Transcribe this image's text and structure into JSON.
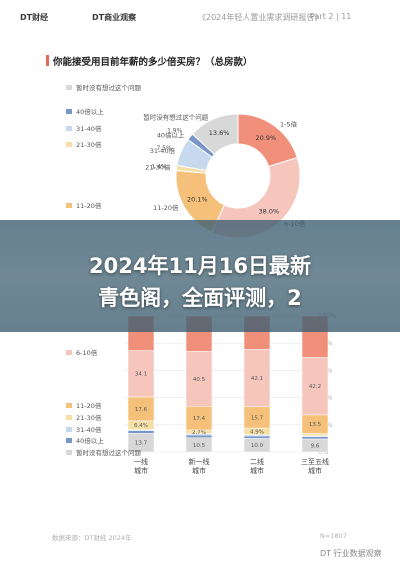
{
  "header": {
    "logo_left": "DT财经",
    "logo_right": "DT商业观察",
    "doc_title": "《2024年轻人置业需求调研报告》",
    "page": "Part 2 | 11"
  },
  "article_banner": "2024年11月16日最新\n青色阁，全面评测，2",
  "chart_data": [
    {
      "type": "pie",
      "title": "你能接受用目前年薪的多少倍买房？（总房款）",
      "slices": [
        {
          "label": "1-5倍",
          "value": 20.9,
          "color": "#f0907a"
        },
        {
          "label": "6-10倍",
          "value": 38.0,
          "color": "#f6c6bd"
        },
        {
          "label": "11-20倍",
          "value": 20.1,
          "color": "#f5c079"
        },
        {
          "label": "21-30倍",
          "value": 1.4,
          "color": "#f6dfa5"
        },
        {
          "label": "31-40倍",
          "value": 7.5,
          "color": "#c6d9ee"
        },
        {
          "label": "40倍以上",
          "value": 1.9,
          "color": "#7896c8"
        },
        {
          "label": "暂时没有想过这个问题",
          "value": 13.6,
          "color": "#d8d8d8"
        }
      ],
      "center_color": "#ffffff"
    },
    {
      "type": "bar",
      "stacked": true,
      "categories": [
        "一线\n城市",
        "新一线\n城市",
        "二线\n城市",
        "三至五线\n城市"
      ],
      "series": [
        {
          "name": "暂时没有想过这个问题",
          "values": [
            13.7,
            10.5,
            10.0,
            9.6
          ],
          "color": "#d8d8d8"
        },
        {
          "name": "40倍以上",
          "values": [
            2.0,
            2.0,
            1.8,
            1.6
          ],
          "color": "#7896c8"
        },
        {
          "name": "31-40倍",
          "values": [
            0.8,
            1.0,
            0.9,
            0.8
          ],
          "color": "#c6d9ee"
        },
        {
          "name": "21-30倍",
          "values": [
            6.4,
            2.7,
            4.9,
            1.8
          ],
          "color": "#f6dfa5"
        },
        {
          "name": "11-20倍",
          "values": [
            17.6,
            17.4,
            15.7,
            13.5
          ],
          "color": "#f5c079"
        },
        {
          "name": "6-10倍",
          "values": [
            34.1,
            40.5,
            42.1,
            42.2
          ],
          "color": "#f6c6bd"
        },
        {
          "name": "1-5倍",
          "values": [
            25.4,
            25.9,
            24.6,
            30.5
          ],
          "color": "#f0907a"
        }
      ],
      "bar_labels": [
        [
          "13.7",
          "",
          "",
          "6.4%",
          "17.6",
          "34.1",
          ""
        ],
        [
          "10.5",
          "",
          "",
          "2.7%",
          "17.4",
          "40.5",
          ""
        ],
        [
          "10.0",
          "",
          "",
          "4.9%",
          "15.7",
          "42.1",
          ""
        ],
        [
          "9.6",
          "",
          "",
          "",
          "13.5",
          "42.2",
          ""
        ]
      ],
      "yticks": [
        "0%",
        "20%",
        "40%",
        "60%",
        "80%",
        "100%"
      ],
      "ylim": [
        0,
        100
      ],
      "legend_visible": [
        "6-10倍",
        "11-20倍",
        "21-30倍",
        "31-40倍",
        "40倍以上",
        "暂时没有想过这个问题"
      ]
    }
  ],
  "footer": {
    "source": "数据来源：DT财经 2024年",
    "note": "N=1807"
  },
  "watermark": "DT 行业数据观察"
}
